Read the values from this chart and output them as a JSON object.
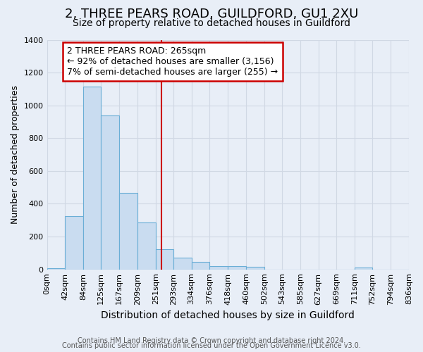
{
  "title": "2, THREE PEARS ROAD, GUILDFORD, GU1 2XU",
  "subtitle": "Size of property relative to detached houses in Guildford",
  "xlabel": "Distribution of detached houses by size in Guildford",
  "ylabel": "Number of detached properties",
  "footer1": "Contains HM Land Registry data © Crown copyright and database right 2024.",
  "footer2": "Contains public sector information licensed under the Open Government Licence v3.0.",
  "bin_labels": [
    "0sqm",
    "42sqm",
    "84sqm",
    "125sqm",
    "167sqm",
    "209sqm",
    "251sqm",
    "293sqm",
    "334sqm",
    "376sqm",
    "418sqm",
    "460sqm",
    "502sqm",
    "543sqm",
    "585sqm",
    "627sqm",
    "669sqm",
    "711sqm",
    "752sqm",
    "794sqm",
    "836sqm"
  ],
  "bin_edges": [
    0,
    42,
    84,
    125,
    167,
    209,
    251,
    293,
    334,
    376,
    418,
    460,
    502,
    543,
    585,
    627,
    669,
    711,
    752,
    794,
    836
  ],
  "bar_values": [
    8,
    325,
    1115,
    940,
    465,
    285,
    125,
    70,
    45,
    22,
    22,
    15,
    0,
    0,
    0,
    0,
    0,
    10,
    0,
    0
  ],
  "bar_color": "#c9dcf0",
  "bar_edge_color": "#6aaed6",
  "grid_color": "#d0d8e4",
  "background_color": "#e8eef7",
  "annotation_line1": "2 THREE PEARS ROAD: 265sqm",
  "annotation_line2": "← 92% of detached houses are smaller (3,156)",
  "annotation_line3": "7% of semi-detached houses are larger (255) →",
  "annotation_box_color": "#ffffff",
  "annotation_box_edge_color": "#cc0000",
  "property_line_x": 265,
  "property_line_color": "#cc0000",
  "ylim": [
    0,
    1400
  ],
  "xlim_min": 0,
  "xlim_max": 836,
  "title_fontsize": 13,
  "subtitle_fontsize": 10,
  "ylabel_fontsize": 9,
  "xlabel_fontsize": 10,
  "tick_fontsize": 8,
  "annotation_fontsize": 9,
  "footer_fontsize": 7
}
